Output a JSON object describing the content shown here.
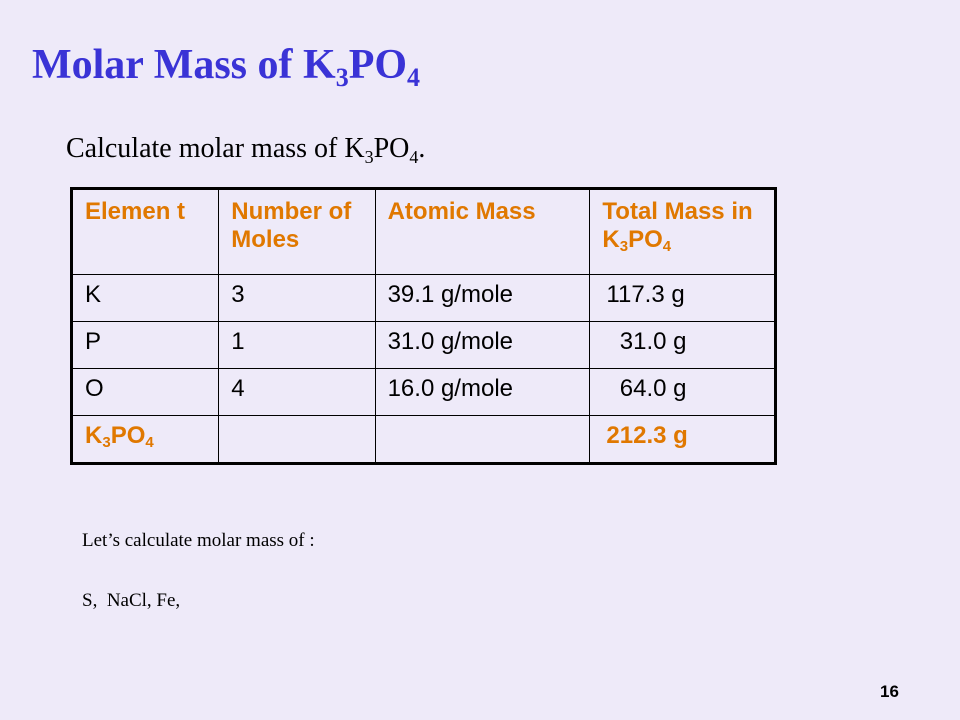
{
  "slide": {
    "title": {
      "prefix": "Molar Mass of K",
      "sub1": "3",
      "mid": "PO",
      "sub2": "4"
    },
    "subtitle": {
      "prefix": "Calculate molar mass of K",
      "sub1": "3",
      "mid": "PO",
      "sub2": "4",
      "suffix": "."
    },
    "table": {
      "headers": {
        "element": "Elemen t",
        "moles": "Number of Moles",
        "atomic": "Atomic Mass",
        "total_prefix": "Total Mass in K",
        "total_sub1": "3",
        "total_mid": "PO",
        "total_sub2": "4"
      },
      "rows": [
        {
          "element": "K",
          "moles": "3",
          "atomic": "39.1 g/mole",
          "total": "117.3 g"
        },
        {
          "element": "P",
          "moles": "1",
          "atomic": "31.0 g/mole",
          "total": "  31.0 g"
        },
        {
          "element": "O",
          "moles": "4",
          "atomic": "16.0 g/mole",
          "total": "  64.0 g"
        }
      ],
      "total_row": {
        "element_prefix": "K",
        "element_sub1": "3",
        "element_mid": "PO",
        "element_sub2": "4",
        "moles": "",
        "atomic": "",
        "total": "212.3 g"
      }
    },
    "note1": "Let’s calculate molar mass of :",
    "note2": "S,  NaCl, Fe,",
    "page_number": "16",
    "colors": {
      "background": "#eeeaf9",
      "title": "#3a33d6",
      "accent": "#e07800"
    }
  }
}
